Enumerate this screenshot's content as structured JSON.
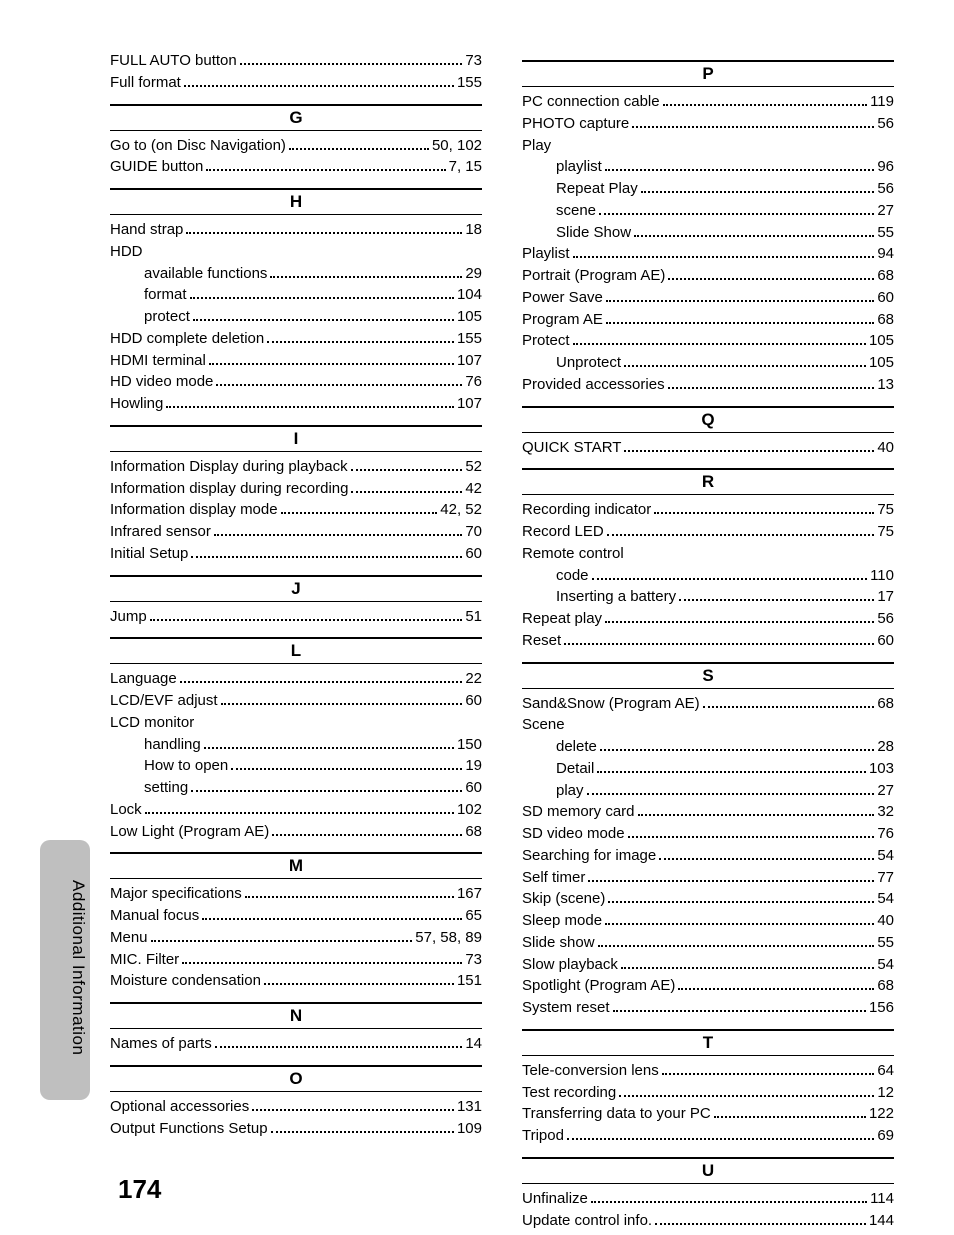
{
  "page_number": "174",
  "side_label": "Additional Information",
  "left": [
    {
      "type": "entry",
      "label": "FULL AUTO button",
      "page": "73"
    },
    {
      "type": "entry",
      "label": "Full format",
      "page": "155"
    },
    {
      "type": "head",
      "label": "G"
    },
    {
      "type": "entry",
      "label": "Go to (on Disc Navigation)",
      "page": "50, 102"
    },
    {
      "type": "entry",
      "label": "GUIDE button",
      "page": "7, 15"
    },
    {
      "type": "head",
      "label": "H"
    },
    {
      "type": "entry",
      "label": "Hand strap",
      "page": "18"
    },
    {
      "type": "entry",
      "label": "HDD",
      "page": "",
      "noline": true
    },
    {
      "type": "sub",
      "label": "available functions",
      "page": "29"
    },
    {
      "type": "sub",
      "label": "format",
      "page": "104"
    },
    {
      "type": "sub",
      "label": "protect",
      "page": "105"
    },
    {
      "type": "entry",
      "label": "HDD complete deletion",
      "page": "155"
    },
    {
      "type": "entry",
      "label": "HDMI terminal",
      "page": "107"
    },
    {
      "type": "entry",
      "label": "HD video mode",
      "page": "76"
    },
    {
      "type": "entry",
      "label": "Howling",
      "page": "107"
    },
    {
      "type": "head",
      "label": "I"
    },
    {
      "type": "entry",
      "label": "Information Display during playback",
      "page": "52"
    },
    {
      "type": "entry",
      "label": "Information display during recording",
      "page": "42"
    },
    {
      "type": "entry",
      "label": "Information display mode",
      "page": "42, 52"
    },
    {
      "type": "entry",
      "label": "Infrared sensor",
      "page": "70"
    },
    {
      "type": "entry",
      "label": "Initial Setup",
      "page": "60"
    },
    {
      "type": "head",
      "label": "J"
    },
    {
      "type": "entry",
      "label": "Jump",
      "page": "51"
    },
    {
      "type": "head",
      "label": "L"
    },
    {
      "type": "entry",
      "label": "Language",
      "page": "22"
    },
    {
      "type": "entry",
      "label": "LCD/EVF adjust",
      "page": "60"
    },
    {
      "type": "entry",
      "label": "LCD monitor",
      "page": "",
      "noline": true
    },
    {
      "type": "sub",
      "label": "handling",
      "page": "150"
    },
    {
      "type": "sub",
      "label": "How to open",
      "page": "19"
    },
    {
      "type": "sub",
      "label": "setting",
      "page": "60"
    },
    {
      "type": "entry",
      "label": "Lock",
      "page": "102"
    },
    {
      "type": "entry",
      "label": "Low Light (Program AE)",
      "page": "68"
    },
    {
      "type": "head",
      "label": "M"
    },
    {
      "type": "entry",
      "label": "Major specifications",
      "page": "167"
    },
    {
      "type": "entry",
      "label": "Manual focus",
      "page": "65"
    },
    {
      "type": "entry",
      "label": "Menu",
      "page": "57, 58, 89"
    },
    {
      "type": "entry",
      "label": "MIC. Filter",
      "page": "73"
    },
    {
      "type": "entry",
      "label": "Moisture condensation",
      "page": "151"
    },
    {
      "type": "head",
      "label": "N"
    },
    {
      "type": "entry",
      "label": "Names of parts",
      "page": "14"
    },
    {
      "type": "head",
      "label": "O"
    },
    {
      "type": "entry",
      "label": "Optional accessories",
      "page": "131"
    },
    {
      "type": "entry",
      "label": "Output Functions Setup",
      "page": "109"
    }
  ],
  "right": [
    {
      "type": "head",
      "label": "P"
    },
    {
      "type": "entry",
      "label": "PC connection cable",
      "page": "119"
    },
    {
      "type": "entry",
      "label": "PHOTO capture",
      "page": "56"
    },
    {
      "type": "entry",
      "label": "Play",
      "page": "",
      "noline": true
    },
    {
      "type": "sub",
      "label": "playlist",
      "page": "96"
    },
    {
      "type": "sub",
      "label": "Repeat Play",
      "page": "56"
    },
    {
      "type": "sub",
      "label": "scene",
      "page": "27"
    },
    {
      "type": "sub",
      "label": "Slide Show",
      "page": "55"
    },
    {
      "type": "entry",
      "label": "Playlist",
      "page": "94"
    },
    {
      "type": "entry",
      "label": "Portrait (Program AE)",
      "page": "68"
    },
    {
      "type": "entry",
      "label": "Power Save",
      "page": "60"
    },
    {
      "type": "entry",
      "label": "Program AE",
      "page": "68"
    },
    {
      "type": "entry",
      "label": "Protect",
      "page": "105"
    },
    {
      "type": "sub",
      "label": "Unprotect",
      "page": "105"
    },
    {
      "type": "entry",
      "label": "Provided accessories",
      "page": "13"
    },
    {
      "type": "head",
      "label": "Q"
    },
    {
      "type": "entry",
      "label": "QUICK START",
      "page": "40"
    },
    {
      "type": "head",
      "label": "R"
    },
    {
      "type": "entry",
      "label": "Recording indicator",
      "page": "75"
    },
    {
      "type": "entry",
      "label": "Record LED",
      "page": "75"
    },
    {
      "type": "entry",
      "label": "Remote control",
      "page": "",
      "noline": true
    },
    {
      "type": "sub",
      "label": "code",
      "page": "110"
    },
    {
      "type": "sub",
      "label": "Inserting a battery",
      "page": "17"
    },
    {
      "type": "entry",
      "label": "Repeat play",
      "page": "56"
    },
    {
      "type": "entry",
      "label": "Reset",
      "page": "60"
    },
    {
      "type": "head",
      "label": "S"
    },
    {
      "type": "entry",
      "label": "Sand&Snow (Program AE)",
      "page": "68"
    },
    {
      "type": "entry",
      "label": "Scene",
      "page": "",
      "noline": true
    },
    {
      "type": "sub",
      "label": "delete",
      "page": "28"
    },
    {
      "type": "sub",
      "label": "Detail",
      "page": "103"
    },
    {
      "type": "sub",
      "label": "play",
      "page": "27"
    },
    {
      "type": "entry",
      "label": "SD memory card",
      "page": "32"
    },
    {
      "type": "entry",
      "label": "SD video mode",
      "page": "76"
    },
    {
      "type": "entry",
      "label": "Searching for image",
      "page": "54"
    },
    {
      "type": "entry",
      "label": "Self timer",
      "page": "77"
    },
    {
      "type": "entry",
      "label": "Skip (scene)",
      "page": "54"
    },
    {
      "type": "entry",
      "label": "Sleep mode",
      "page": "40"
    },
    {
      "type": "entry",
      "label": "Slide show",
      "page": "55"
    },
    {
      "type": "entry",
      "label": "Slow playback",
      "page": "54"
    },
    {
      "type": "entry",
      "label": "Spotlight (Program AE)",
      "page": "68"
    },
    {
      "type": "entry",
      "label": "System reset",
      "page": "156"
    },
    {
      "type": "head",
      "label": "T"
    },
    {
      "type": "entry",
      "label": "Tele-conversion lens",
      "page": "64"
    },
    {
      "type": "entry",
      "label": "Test recording",
      "page": "12"
    },
    {
      "type": "entry",
      "label": "Transferring data to your PC",
      "page": "122"
    },
    {
      "type": "entry",
      "label": "Tripod",
      "page": "69"
    },
    {
      "type": "head",
      "label": "U"
    },
    {
      "type": "entry",
      "label": "Unfinalize",
      "page": "114"
    },
    {
      "type": "entry",
      "label": "Update control info.",
      "page": "144"
    }
  ]
}
